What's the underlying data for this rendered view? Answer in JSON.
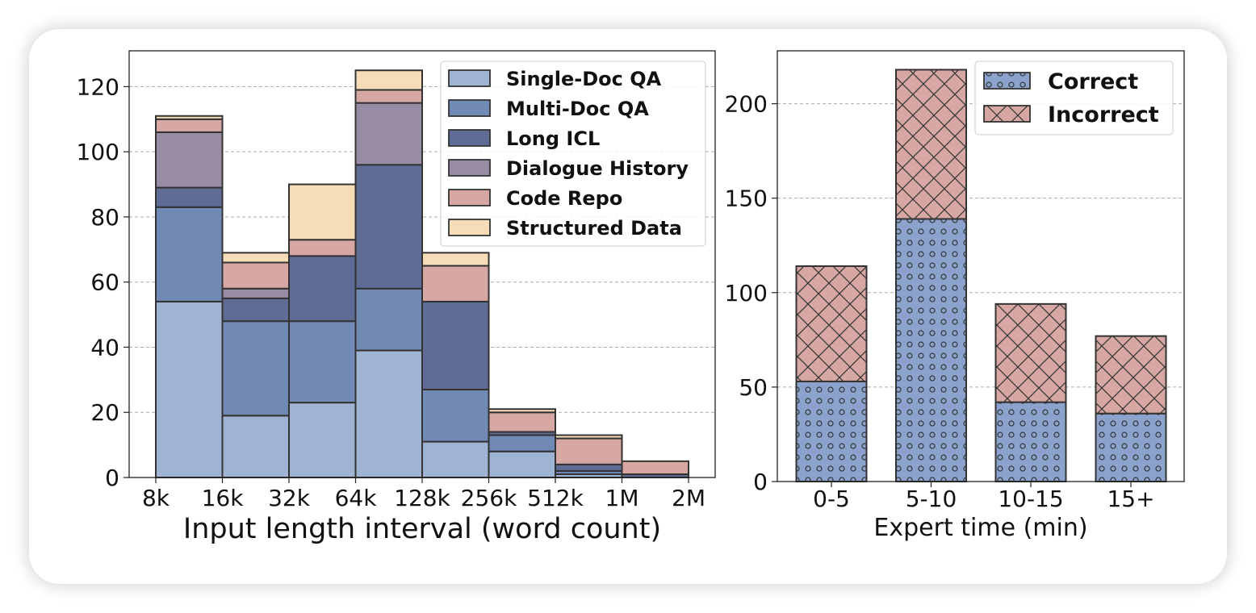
{
  "chart_data": [
    {
      "type": "bar",
      "stacked": true,
      "xlabel": "Input length interval (word count)",
      "ylabel": "",
      "ylim": [
        0,
        131
      ],
      "yticks": [
        0,
        20,
        40,
        60,
        80,
        100,
        120
      ],
      "tick_labels": [
        "8k",
        "16k",
        "32k",
        "64k",
        "128k",
        "256k",
        "512k",
        "1M",
        "2M"
      ],
      "grid": true,
      "legend_position": "top-right",
      "series": [
        {
          "name": "Single-Doc QA",
          "color": "#9fb3d2",
          "values": [
            54,
            19,
            23,
            39,
            11,
            8,
            1,
            0
          ]
        },
        {
          "name": "Multi-Doc QA",
          "color": "#7089b5",
          "values": [
            29,
            29,
            25,
            19,
            16,
            5,
            1,
            0
          ]
        },
        {
          "name": "Long ICL",
          "color": "#5f6c95",
          "values": [
            6,
            7,
            20,
            38,
            27,
            1,
            2,
            1
          ]
        },
        {
          "name": "Dialogue History",
          "color": "#978ca3",
          "values": [
            17,
            3,
            0,
            19,
            0,
            0,
            0,
            0
          ]
        },
        {
          "name": "Code Repo",
          "color": "#d6a7a3",
          "values": [
            4,
            8,
            5,
            4,
            11,
            6,
            8,
            4
          ]
        },
        {
          "name": "Structured Data",
          "color": "#f6ddb8",
          "values": [
            1,
            3,
            17,
            6,
            4,
            1,
            1,
            0
          ]
        }
      ]
    },
    {
      "type": "bar",
      "stacked": true,
      "xlabel": "Expert time (min)",
      "ylabel": "",
      "ylim": [
        0,
        228
      ],
      "yticks": [
        0,
        50,
        100,
        150,
        200
      ],
      "categories": [
        "0-5",
        "5-10",
        "10-15",
        "15+"
      ],
      "grid": true,
      "legend_position": "top-right",
      "series": [
        {
          "name": "Correct",
          "color": "#8ba3cc",
          "hatch": "dots",
          "values": [
            53,
            139,
            42,
            36
          ]
        },
        {
          "name": "Incorrect",
          "color": "#d6a7a3",
          "hatch": "cross",
          "values": [
            61,
            79,
            52,
            41
          ]
        }
      ]
    }
  ]
}
